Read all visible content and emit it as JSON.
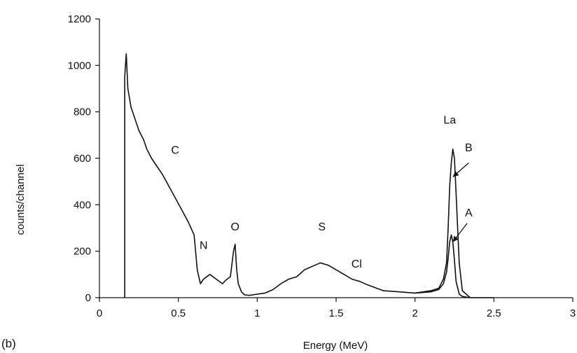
{
  "chart_data": {
    "type": "line",
    "panel_label": "(b)",
    "title": "",
    "xlabel": "Energy (MeV)",
    "ylabel": "counts/channel",
    "xlim": [
      0,
      3
    ],
    "ylim": [
      0,
      1200
    ],
    "x_ticks": [
      {
        "value": 0,
        "label": "0"
      },
      {
        "value": 0.5,
        "label": "0.5"
      },
      {
        "value": 1,
        "label": "1"
      },
      {
        "value": 1.5,
        "label": "1.5"
      },
      {
        "value": 2,
        "label": "2"
      },
      {
        "value": 2.5,
        "label": "2.5"
      },
      {
        "value": 3,
        "label": "3"
      }
    ],
    "y_ticks": [
      {
        "value": 0,
        "label": "0"
      },
      {
        "value": 200,
        "label": "200"
      },
      {
        "value": 400,
        "label": "400"
      },
      {
        "value": 600,
        "label": "600"
      },
      {
        "value": 800,
        "label": "800"
      },
      {
        "value": 1000,
        "label": "1000"
      },
      {
        "value": 1200,
        "label": "1200"
      }
    ],
    "grid": false,
    "legend": "none",
    "color": "#111111",
    "series": [
      {
        "x": [
          0.16,
          0.16,
          0.17,
          0.18,
          0.2,
          0.22,
          0.25,
          0.28,
          0.3,
          0.33,
          0.36,
          0.4,
          0.44,
          0.48,
          0.52,
          0.56,
          0.6,
          0.62,
          0.64,
          0.66,
          0.7,
          0.74,
          0.78,
          0.8,
          0.83,
          0.85,
          0.86,
          0.87,
          0.88,
          0.9,
          0.92,
          0.95,
          1.0,
          1.05,
          1.1,
          1.15,
          1.2,
          1.25,
          1.3,
          1.35,
          1.4,
          1.45,
          1.5,
          1.55,
          1.6,
          1.65,
          1.7,
          1.8,
          1.9,
          2.0,
          2.1,
          2.15,
          2.18,
          2.2,
          2.21,
          2.22,
          2.23,
          2.24,
          2.25,
          2.26,
          2.28,
          2.3,
          2.35,
          2.5
        ],
        "y": [
          0,
          950,
          1050,
          900,
          820,
          780,
          720,
          680,
          640,
          600,
          570,
          530,
          480,
          430,
          380,
          330,
          270,
          120,
          60,
          80,
          100,
          80,
          60,
          75,
          90,
          200,
          230,
          120,
          60,
          25,
          12,
          10,
          15,
          20,
          35,
          60,
          80,
          90,
          120,
          135,
          150,
          140,
          120,
          100,
          80,
          70,
          55,
          30,
          25,
          20,
          30,
          40,
          80,
          150,
          300,
          480,
          580,
          640,
          600,
          450,
          150,
          30,
          0,
          0
        ]
      },
      {
        "x": [
          2.0,
          2.1,
          2.15,
          2.18,
          2.2,
          2.21,
          2.22,
          2.23,
          2.24,
          2.25,
          2.26,
          2.28,
          2.3,
          2.35
        ],
        "y": [
          20,
          25,
          35,
          60,
          110,
          170,
          240,
          270,
          240,
          160,
          70,
          15,
          5,
          0
        ]
      }
    ],
    "annotations": [
      {
        "text": "C",
        "x": 0.48,
        "y": 620
      },
      {
        "text": "N",
        "x": 0.66,
        "y": 210
      },
      {
        "text": "O",
        "x": 0.86,
        "y": 290
      },
      {
        "text": "S",
        "x": 1.41,
        "y": 290
      },
      {
        "text": "Cl",
        "x": 1.63,
        "y": 130
      },
      {
        "text": "La",
        "x": 2.22,
        "y": 750
      },
      {
        "text": "B",
        "x": 2.34,
        "y": 630
      },
      {
        "text": "A",
        "x": 2.34,
        "y": 350
      }
    ],
    "arrows": [
      {
        "label": "B",
        "from_x": 2.34,
        "from_y": 580,
        "to_x": 2.24,
        "to_y": 520
      },
      {
        "label": "A",
        "from_x": 2.33,
        "from_y": 320,
        "to_x": 2.24,
        "to_y": 240
      }
    ]
  }
}
